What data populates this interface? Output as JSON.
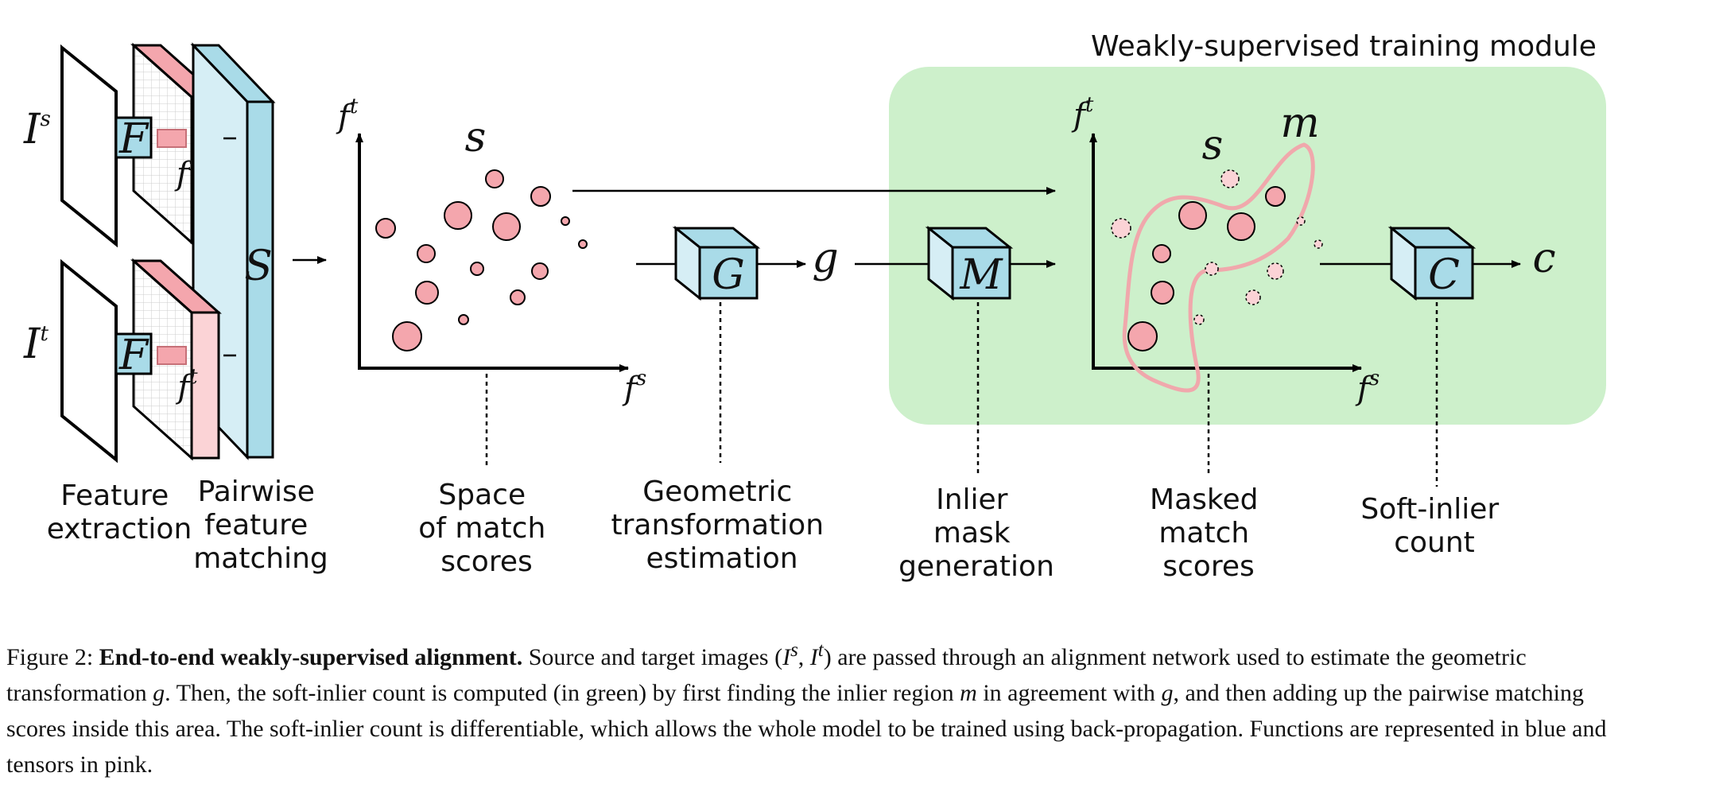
{
  "module_title": "Weakly-supervised training module",
  "symbols": {
    "I": "I",
    "s": "s",
    "t": "t",
    "F": "F",
    "f": "f",
    "S": "S",
    "score": "s",
    "G": "G",
    "g": "g",
    "M": "M",
    "m": "m",
    "C": "C",
    "c": "c"
  },
  "stage_labels": {
    "feature_extraction": [
      "Feature",
      "extraction"
    ],
    "pairwise_matching": [
      "Pairwise",
      "feature",
      "matching"
    ],
    "space_of_scores": [
      "Space",
      "of match",
      "scores"
    ],
    "geometric_estimation": [
      "Geometric",
      "transformation",
      "estimation"
    ],
    "inlier_mask": [
      "Inlier",
      "mask",
      "generation"
    ],
    "masked_scores": [
      "Masked",
      "match",
      "scores"
    ],
    "soft_inlier": [
      "Soft-inlier",
      "count"
    ]
  },
  "colors": {
    "tensor_pink": "#f4a6ad",
    "tensor_pink_light": "#fbd3d6",
    "function_blue": "#a9dbe8",
    "function_blue_light": "#d6eef5",
    "module_green": "#cdf0cb",
    "mask_outline": "#f0a8ac"
  },
  "caption": {
    "figure": "Figure 2:",
    "title": "End-to-end weakly-supervised alignment.",
    "t1": "Source and target images (",
    "I": "I",
    "s": "s",
    "comma": ", ",
    "t": "t",
    "t2": ") are passed through an alignment network used to estimate the geometric transformation ",
    "g": "g",
    "t3": ". Then, the soft-inlier count is computed (in green) by first finding the inlier region ",
    "m": "m",
    "t4": " in agreement with ",
    "t5": ", and then adding up the pairwise matching scores inside this area. The soft-inlier count is differentiable, which allows the whole model to be trained using back-propagation. Functions are represented in blue and tensors in pink."
  }
}
